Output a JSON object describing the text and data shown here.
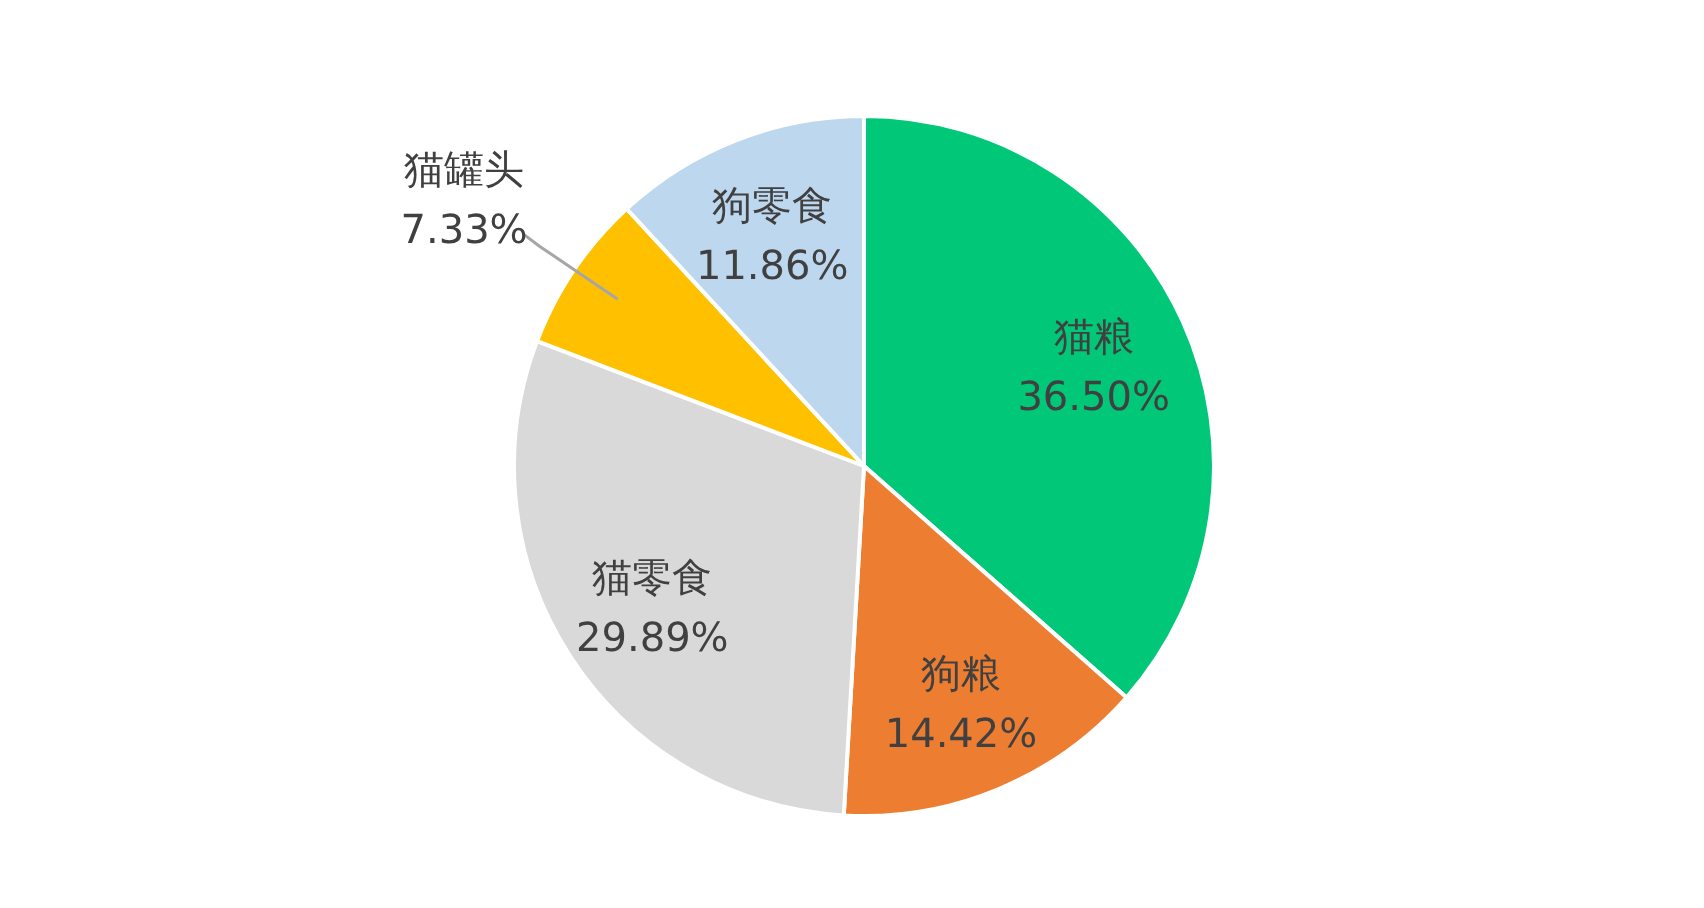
{
  "chart_data": {
    "type": "pie",
    "categories": [
      "猫粮",
      "狗粮",
      "猫零食",
      "猫罐头",
      "狗零食"
    ],
    "values": [
      36.5,
      14.42,
      29.89,
      7.33,
      11.86
    ],
    "colors": [
      "#00c878",
      "#ed7d31",
      "#d9d9d9",
      "#ffc000",
      "#bdd7ee"
    ],
    "value_labels": [
      "36.50%",
      "14.42%",
      "29.89%",
      "7.33%",
      "11.86%"
    ],
    "legend": false
  }
}
